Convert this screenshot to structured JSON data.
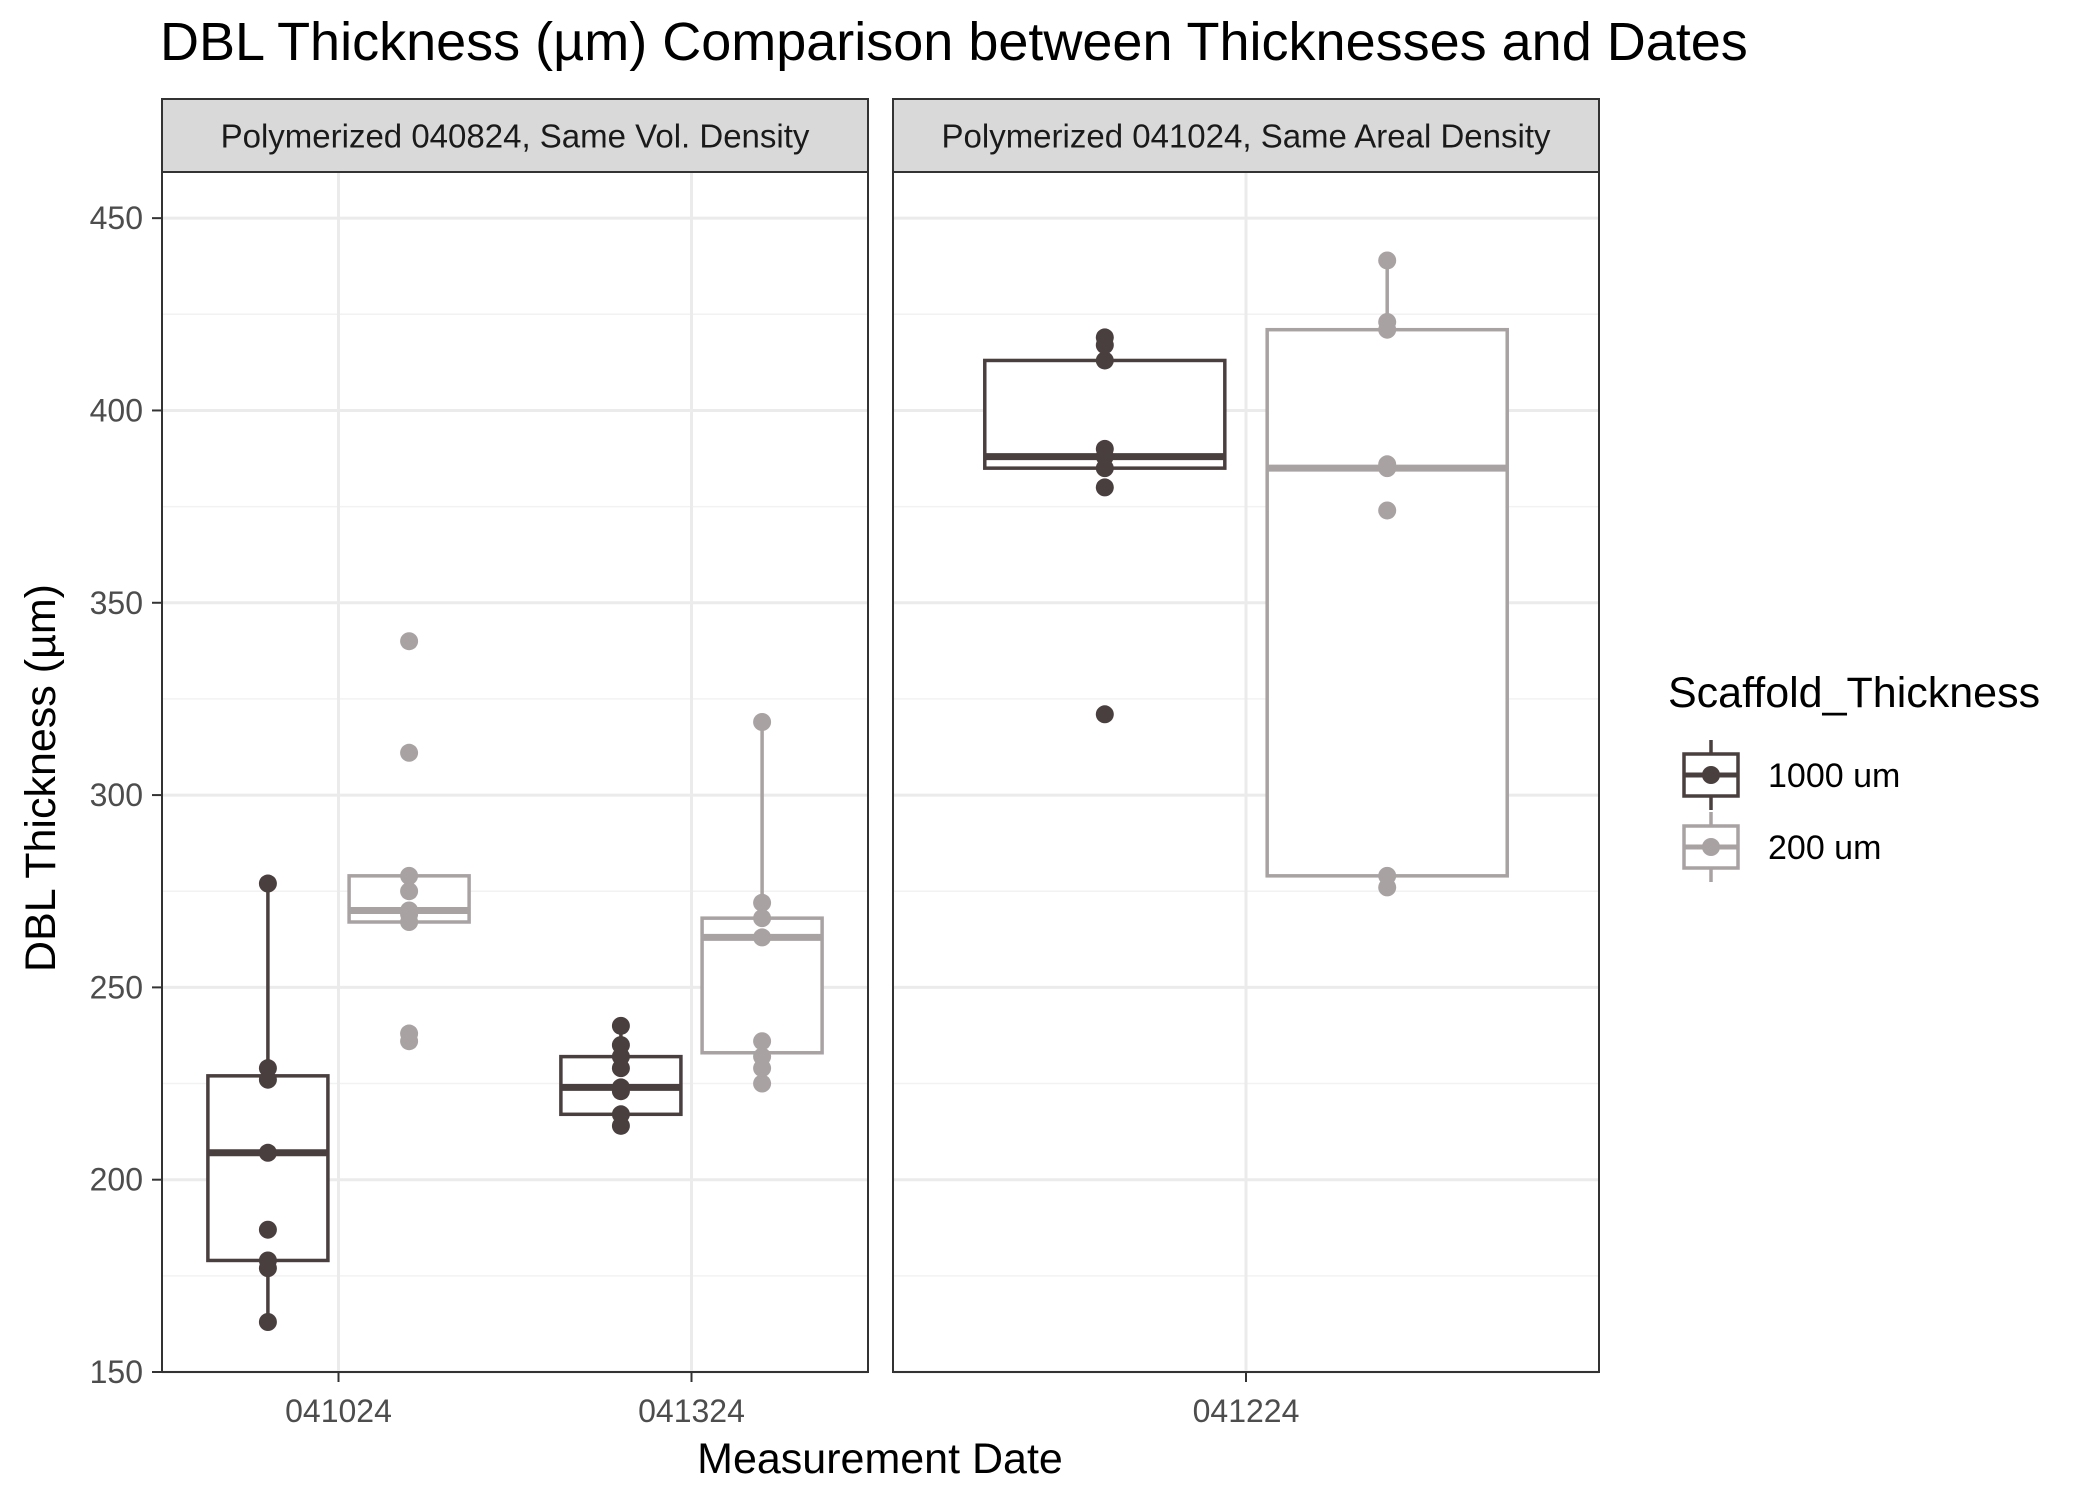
{
  "chart_data": {
    "type": "boxplot",
    "title": "DBL Thickness (µm) Comparison between Thicknesses and Dates",
    "xlabel": "Measurement Date",
    "ylabel": "DBL Thickness (µm)",
    "ylim": [
      150,
      462
    ],
    "yticks": [
      150,
      200,
      250,
      300,
      350,
      400,
      450
    ],
    "grid": true,
    "legend": {
      "title": "Scaffold_Thickness",
      "placement": "right",
      "entries": [
        {
          "label": "1000 um",
          "color": "#4a3f3f"
        },
        {
          "label": "200 um",
          "color": "#a8a2a3"
        }
      ]
    },
    "facets": [
      {
        "label": "Polymerized 040824, Same Vol. Density",
        "categories": [
          "041024",
          "041324"
        ],
        "groups": [
          {
            "category": "041024",
            "series": "1000 um",
            "box": {
              "lower_whisker": 163,
              "q1": 179,
              "median": 207,
              "q3": 227,
              "upper_whisker": 277
            },
            "points": [
              163,
              177,
              179,
              187,
              207,
              226,
              229,
              277
            ]
          },
          {
            "category": "041024",
            "series": "200 um",
            "box": {
              "lower_whisker": 267,
              "q1": 267,
              "median": 270,
              "q3": 279,
              "upper_whisker": 279
            },
            "points": [
              236,
              238,
              267,
              269,
              270,
              275,
              279,
              311,
              340
            ]
          },
          {
            "category": "041324",
            "series": "1000 um",
            "box": {
              "lower_whisker": 214,
              "q1": 217,
              "median": 224,
              "q3": 232,
              "upper_whisker": 240
            },
            "points": [
              214,
              217,
              223,
              224,
              229,
              232,
              235,
              240
            ]
          },
          {
            "category": "041324",
            "series": "200 um",
            "box": {
              "lower_whisker": 225,
              "q1": 233,
              "median": 263,
              "q3": 268,
              "upper_whisker": 319
            },
            "points": [
              225,
              229,
              232,
              236,
              263,
              268,
              272,
              319
            ]
          }
        ]
      },
      {
        "label": "Polymerized 041024, Same Areal Density",
        "categories": [
          "041224"
        ],
        "groups": [
          {
            "category": "041224",
            "series": "1000 um",
            "box": {
              "lower_whisker": 385,
              "q1": 385,
              "median": 388,
              "q3": 413,
              "upper_whisker": 413
            },
            "points": [
              321,
              380,
              385,
              388,
              390,
              413,
              417,
              419
            ]
          },
          {
            "category": "041224",
            "series": "200 um",
            "box": {
              "lower_whisker": 279,
              "q1": 279,
              "median": 385,
              "q3": 421,
              "upper_whisker": 439
            },
            "points": [
              276,
              279,
              374,
              385,
              386,
              421,
              423,
              439
            ]
          }
        ]
      }
    ]
  }
}
